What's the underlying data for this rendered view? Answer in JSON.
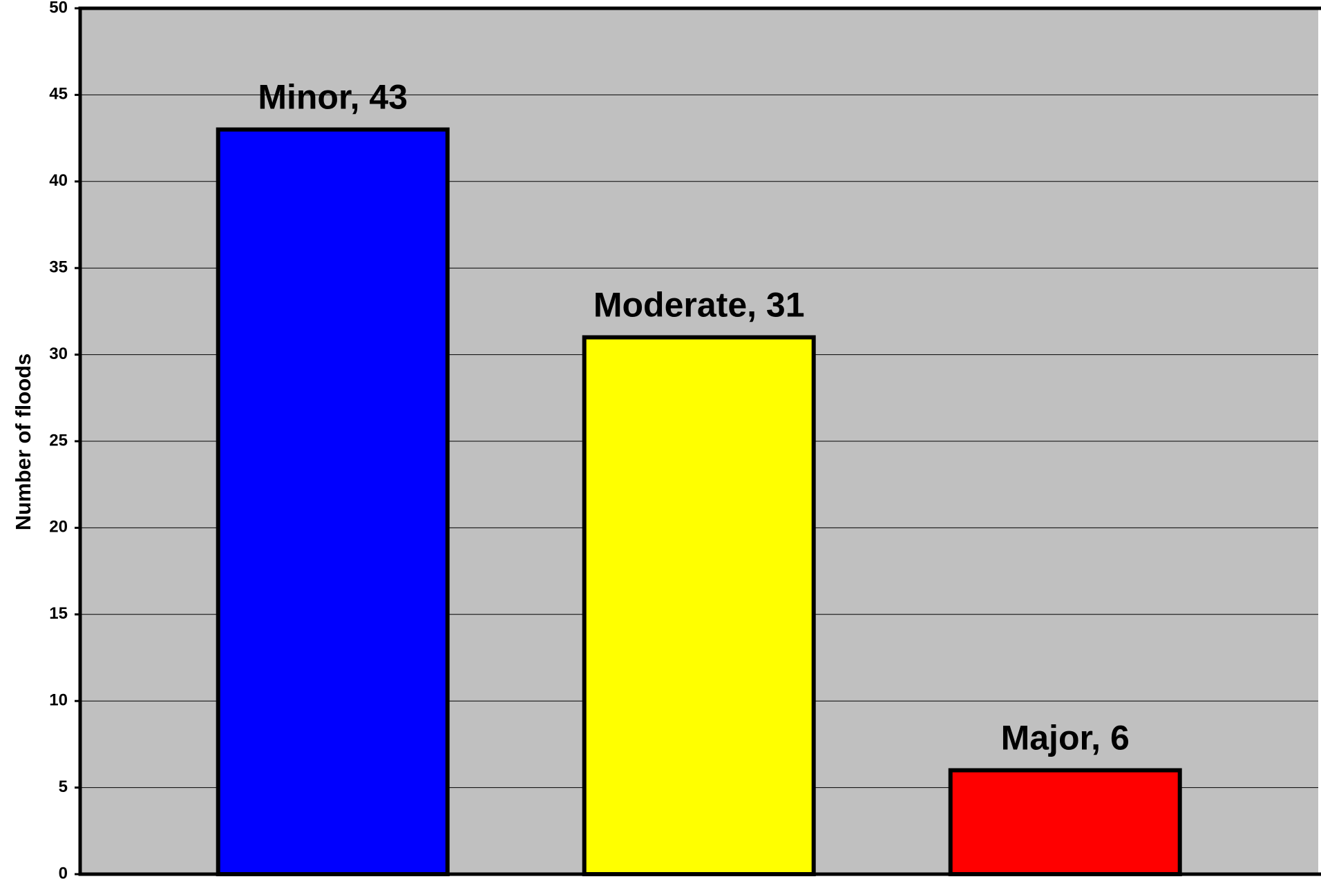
{
  "chart_data": {
    "type": "bar",
    "y_axis_label": "Number of floods",
    "values": [
      43,
      31,
      6
    ],
    "value_labels": [
      "Minor, 43",
      "Moderate, 31",
      "Major, 6"
    ],
    "colors": [
      "#0000ff",
      "#ffff00",
      "#ff0000"
    ],
    "ylim": [
      0,
      50
    ],
    "yticks": [
      0,
      5,
      10,
      15,
      20,
      25,
      30,
      35,
      40,
      45,
      50
    ],
    "grid": true,
    "background": "#c0c0c0"
  }
}
